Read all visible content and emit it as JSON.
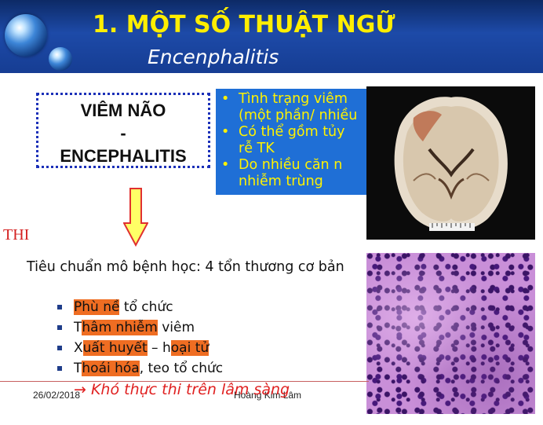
{
  "header": {
    "title": "1. MỘT SỐ THUẬT NGỮ",
    "subtitle": "Encenphalitis"
  },
  "term_box": {
    "line1": "VIÊM NÃO",
    "line2": "-",
    "line3": "ENCEPHALITIS"
  },
  "definition_bullets": [
    "Tình trạng viêm",
    "(một phần/ nhiều",
    "Có thể gồm tủy",
    "rễ TK",
    "Do nhiều căn n",
    "nhiễm trùng"
  ],
  "side_label": "THI",
  "criteria": {
    "text": "Tiêu chuẩn mô bệnh học: 4 tổn thương cơ bản",
    "items": [
      {
        "pre": "",
        "hl": "Phù nề",
        "post": " tổ chức"
      },
      {
        "pre": "T",
        "hl": "hâm nhiễm",
        "post": " viêm"
      },
      {
        "pre": "X",
        "hl": "uất huyết",
        "mid": " – h",
        "hl2": "oại tử",
        "post": ""
      },
      {
        "pre": "T",
        "hl": "hoái hóa",
        "post": ", teo tổ chức"
      }
    ]
  },
  "conclusion": "→ Khó thực thi trên lâm sàng",
  "footer": {
    "date": "26/02/2018",
    "author": "Hoàng Kim Lâm"
  },
  "colors": {
    "header_blue": "#1d4aa8",
    "title_yellow": "#ffee00",
    "bullet_box_blue": "#1f6fd6",
    "highlight_orange": "#ef6d22",
    "accent_red": "#e02020"
  }
}
